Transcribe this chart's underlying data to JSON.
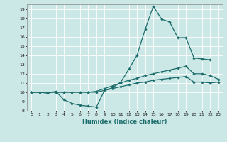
{
  "xlabel": "Humidex (Indice chaleur)",
  "bg_color": "#cce8e6",
  "grid_color": "#ffffff",
  "line_color": "#1a6b6b",
  "xlim": [
    -0.5,
    23.5
  ],
  "ylim": [
    8,
    19.5
  ],
  "yticks": [
    8,
    9,
    10,
    11,
    12,
    13,
    14,
    15,
    16,
    17,
    18,
    19
  ],
  "xticks": [
    0,
    1,
    2,
    3,
    4,
    5,
    6,
    7,
    8,
    9,
    10,
    11,
    12,
    13,
    14,
    15,
    16,
    17,
    18,
    19,
    20,
    21,
    22,
    23
  ],
  "series": [
    {
      "x": [
        0,
        1,
        2,
        3,
        4,
        5,
        6,
        7,
        8,
        9,
        10,
        11,
        12,
        13,
        14,
        15,
        16,
        17,
        18,
        19,
        20,
        21,
        22
      ],
      "y": [
        10,
        10,
        9.9,
        10.1,
        9.2,
        8.8,
        8.6,
        8.5,
        8.4,
        10.2,
        10.5,
        11.1,
        12.5,
        14.0,
        16.8,
        19.3,
        17.9,
        17.6,
        15.9,
        15.9,
        13.7,
        13.6,
        13.5
      ],
      "marker": "D",
      "markersize": 1.8,
      "linewidth": 0.9
    },
    {
      "x": [
        0,
        1,
        2,
        3,
        4,
        5,
        6,
        7,
        8,
        9,
        10,
        11,
        12,
        13,
        14,
        15,
        16,
        17,
        18,
        19,
        20,
        21,
        22,
        23
      ],
      "y": [
        10,
        10,
        10,
        10,
        10,
        10,
        10,
        10,
        10.1,
        10.4,
        10.7,
        11.0,
        11.3,
        11.5,
        11.8,
        12.0,
        12.2,
        12.4,
        12.6,
        12.8,
        12.0,
        12.0,
        11.8,
        11.4
      ],
      "marker": "D",
      "markersize": 1.8,
      "linewidth": 0.9
    },
    {
      "x": [
        0,
        1,
        2,
        3,
        4,
        5,
        6,
        7,
        8,
        9,
        10,
        11,
        12,
        13,
        14,
        15,
        16,
        17,
        18,
        19,
        20,
        21,
        22,
        23
      ],
      "y": [
        10,
        10,
        10,
        10,
        10,
        10,
        10,
        10,
        10.0,
        10.2,
        10.4,
        10.6,
        10.8,
        11.0,
        11.1,
        11.3,
        11.4,
        11.5,
        11.6,
        11.7,
        11.1,
        11.1,
        11.0,
        11.1
      ],
      "marker": "D",
      "markersize": 1.8,
      "linewidth": 0.9
    }
  ]
}
